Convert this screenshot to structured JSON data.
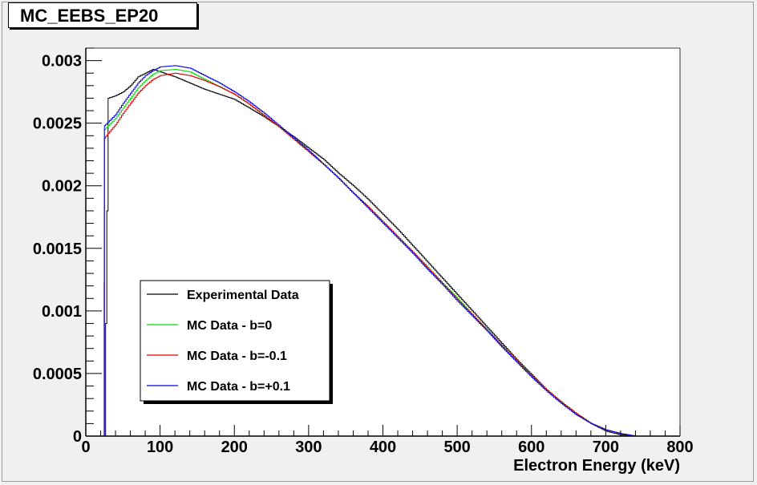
{
  "canvas_title": "MC_EEBS_EP20",
  "chart_data": {
    "type": "line",
    "title": "MC_EEBS_EP20",
    "xlabel": "Electron Energy (keV)",
    "ylabel": "",
    "xlim": [
      0,
      800
    ],
    "ylim": [
      0,
      0.0031
    ],
    "xticks": [
      0,
      100,
      200,
      300,
      400,
      500,
      600,
      700,
      800
    ],
    "xtick_labels": [
      "0",
      "100",
      "200",
      "300",
      "400",
      "500",
      "600",
      "700",
      "800"
    ],
    "yticks": [
      0,
      0.0005,
      0.001,
      0.0015,
      0.002,
      0.0025,
      0.003
    ],
    "ytick_labels": [
      "0",
      "0.0005",
      "0.001",
      "0.0015",
      "0.002",
      "0.0025",
      "0.003"
    ],
    "grid": false,
    "legend_position": "bottom-left",
    "series": [
      {
        "name": "Experimental Data",
        "color": "#000000",
        "x": [
          25,
          30,
          40,
          50,
          60,
          70,
          80,
          90,
          100,
          120,
          140,
          160,
          180,
          200,
          220,
          240,
          260,
          280,
          300,
          320,
          340,
          360,
          380,
          400,
          420,
          440,
          460,
          480,
          500,
          520,
          540,
          560,
          580,
          600,
          620,
          640,
          660,
          680,
          700,
          720,
          740,
          750
        ],
        "y": [
          0.0,
          0.0027,
          0.00272,
          0.00275,
          0.0028,
          0.00287,
          0.0029,
          0.00293,
          0.00291,
          0.00287,
          0.00282,
          0.00277,
          0.00273,
          0.00269,
          0.00262,
          0.00255,
          0.00247,
          0.00239,
          0.0023,
          0.00221,
          0.0021,
          0.002,
          0.00189,
          0.00177,
          0.00165,
          0.00152,
          0.00139,
          0.00126,
          0.00113,
          0.001,
          0.00087,
          0.00074,
          0.00061,
          0.00049,
          0.00037,
          0.00027,
          0.00018,
          0.0001,
          4e-05,
          1e-05,
          0.0,
          0.0
        ]
      },
      {
        "name": "MC Data - b=0",
        "color": "#00dd00",
        "x": [
          24,
          25,
          30,
          40,
          50,
          60,
          70,
          80,
          90,
          100,
          120,
          140,
          160,
          180,
          200,
          220,
          240,
          260,
          280,
          300,
          320,
          340,
          360,
          380,
          400,
          420,
          440,
          460,
          480,
          500,
          520,
          540,
          560,
          580,
          600,
          620,
          640,
          660,
          680,
          700,
          720,
          740,
          750
        ],
        "y": [
          0.0,
          0.00245,
          0.00248,
          0.00254,
          0.00262,
          0.0027,
          0.00278,
          0.00284,
          0.00289,
          0.00292,
          0.00293,
          0.00291,
          0.00285,
          0.00279,
          0.00273,
          0.00265,
          0.00256,
          0.00247,
          0.00237,
          0.00227,
          0.00217,
          0.00206,
          0.00194,
          0.00183,
          0.00171,
          0.00159,
          0.00147,
          0.00135,
          0.00122,
          0.0011,
          0.00097,
          0.00085,
          0.00072,
          0.0006,
          0.00048,
          0.00037,
          0.00027,
          0.00018,
          0.0001,
          5e-05,
          2e-05,
          0.0,
          0.0
        ]
      },
      {
        "name": "MC Data - b=-0.1",
        "color": "#dd0000",
        "x": [
          25,
          30,
          40,
          50,
          60,
          70,
          80,
          90,
          100,
          120,
          140,
          160,
          180,
          200,
          220,
          240,
          260,
          280,
          300,
          320,
          340,
          360,
          380,
          400,
          420,
          440,
          460,
          480,
          500,
          520,
          540,
          560,
          580,
          600,
          620,
          640,
          660,
          680,
          700,
          720,
          740,
          750
        ],
        "y": [
          0.00238,
          0.00242,
          0.00249,
          0.00258,
          0.00266,
          0.00274,
          0.0028,
          0.00285,
          0.00288,
          0.0029,
          0.00288,
          0.00284,
          0.00279,
          0.00273,
          0.00265,
          0.00256,
          0.00247,
          0.00237,
          0.00227,
          0.00217,
          0.00206,
          0.00194,
          0.00183,
          0.00171,
          0.00159,
          0.00147,
          0.00134,
          0.00122,
          0.00109,
          0.00097,
          0.00084,
          0.00072,
          0.0006,
          0.00048,
          0.00037,
          0.00027,
          0.00018,
          0.0001,
          5e-05,
          2e-05,
          0.0,
          0.0
        ]
      },
      {
        "name": "MC Data - b=+0.1",
        "color": "#0000dd",
        "x": [
          25,
          30,
          40,
          50,
          60,
          70,
          80,
          90,
          100,
          120,
          140,
          160,
          180,
          200,
          220,
          240,
          260,
          280,
          300,
          320,
          340,
          360,
          380,
          400,
          420,
          440,
          460,
          480,
          500,
          520,
          540,
          560,
          580,
          600,
          620,
          640,
          660,
          680,
          700,
          720,
          740,
          750
        ],
        "y": [
          0.00248,
          0.00251,
          0.00257,
          0.00266,
          0.00274,
          0.00282,
          0.00288,
          0.00292,
          0.00295,
          0.00296,
          0.00294,
          0.00288,
          0.00282,
          0.00275,
          0.00267,
          0.00258,
          0.00248,
          0.00238,
          0.00228,
          0.00217,
          0.00206,
          0.00194,
          0.00182,
          0.0017,
          0.00158,
          0.00146,
          0.00133,
          0.00121,
          0.00108,
          0.00096,
          0.00084,
          0.00071,
          0.00059,
          0.00047,
          0.00036,
          0.00026,
          0.00017,
          0.0001,
          5e-05,
          2e-05,
          0.0,
          0.0
        ]
      }
    ]
  }
}
